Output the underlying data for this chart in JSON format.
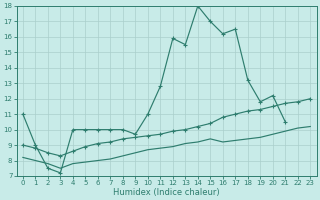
{
  "main_x": [
    0,
    1,
    2,
    3,
    4,
    5,
    6,
    7,
    8,
    9,
    10,
    11,
    12,
    13,
    14,
    15,
    16,
    17,
    18,
    19,
    20,
    21,
    22,
    23
  ],
  "main_y": [
    11.0,
    9.0,
    7.5,
    7.2,
    10.0,
    10.0,
    10.0,
    10.0,
    10.0,
    9.7,
    11.0,
    12.8,
    15.9,
    15.5,
    18.0,
    17.0,
    16.2,
    16.5,
    13.2,
    11.8,
    12.2,
    10.5,
    null,
    null
  ],
  "line2_x": [
    0,
    1,
    2,
    3,
    4,
    5,
    6,
    7,
    8,
    9,
    10,
    11,
    12,
    13,
    14,
    15,
    16,
    17,
    18,
    19,
    20,
    21,
    22,
    23
  ],
  "line2_y": [
    9.0,
    8.8,
    8.5,
    8.3,
    8.6,
    8.9,
    9.1,
    9.2,
    9.4,
    9.5,
    9.6,
    9.7,
    9.9,
    10.0,
    10.2,
    10.4,
    10.8,
    11.0,
    11.2,
    11.3,
    11.5,
    11.7,
    11.8,
    12.0
  ],
  "line3_x": [
    0,
    1,
    2,
    3,
    4,
    5,
    6,
    7,
    8,
    9,
    10,
    11,
    12,
    13,
    14,
    15,
    16,
    17,
    18,
    19,
    20,
    21,
    22,
    23
  ],
  "line3_y": [
    8.2,
    8.0,
    7.8,
    7.5,
    7.8,
    7.9,
    8.0,
    8.1,
    8.3,
    8.5,
    8.7,
    8.8,
    8.9,
    9.1,
    9.2,
    9.4,
    9.2,
    9.3,
    9.4,
    9.5,
    9.7,
    9.9,
    10.1,
    10.2
  ],
  "line_color": "#2e7d6e",
  "bg_color": "#c8ebe8",
  "grid_color": "#aacfcc",
  "ylim": [
    7,
    18
  ],
  "xlim": [
    -0.5,
    23.5
  ],
  "yticks": [
    7,
    8,
    9,
    10,
    11,
    12,
    13,
    14,
    15,
    16,
    17,
    18
  ],
  "xticks": [
    0,
    1,
    2,
    3,
    4,
    5,
    6,
    7,
    8,
    9,
    10,
    11,
    12,
    13,
    14,
    15,
    16,
    17,
    18,
    19,
    20,
    21,
    22,
    23
  ],
  "xlabel": "Humidex (Indice chaleur)"
}
